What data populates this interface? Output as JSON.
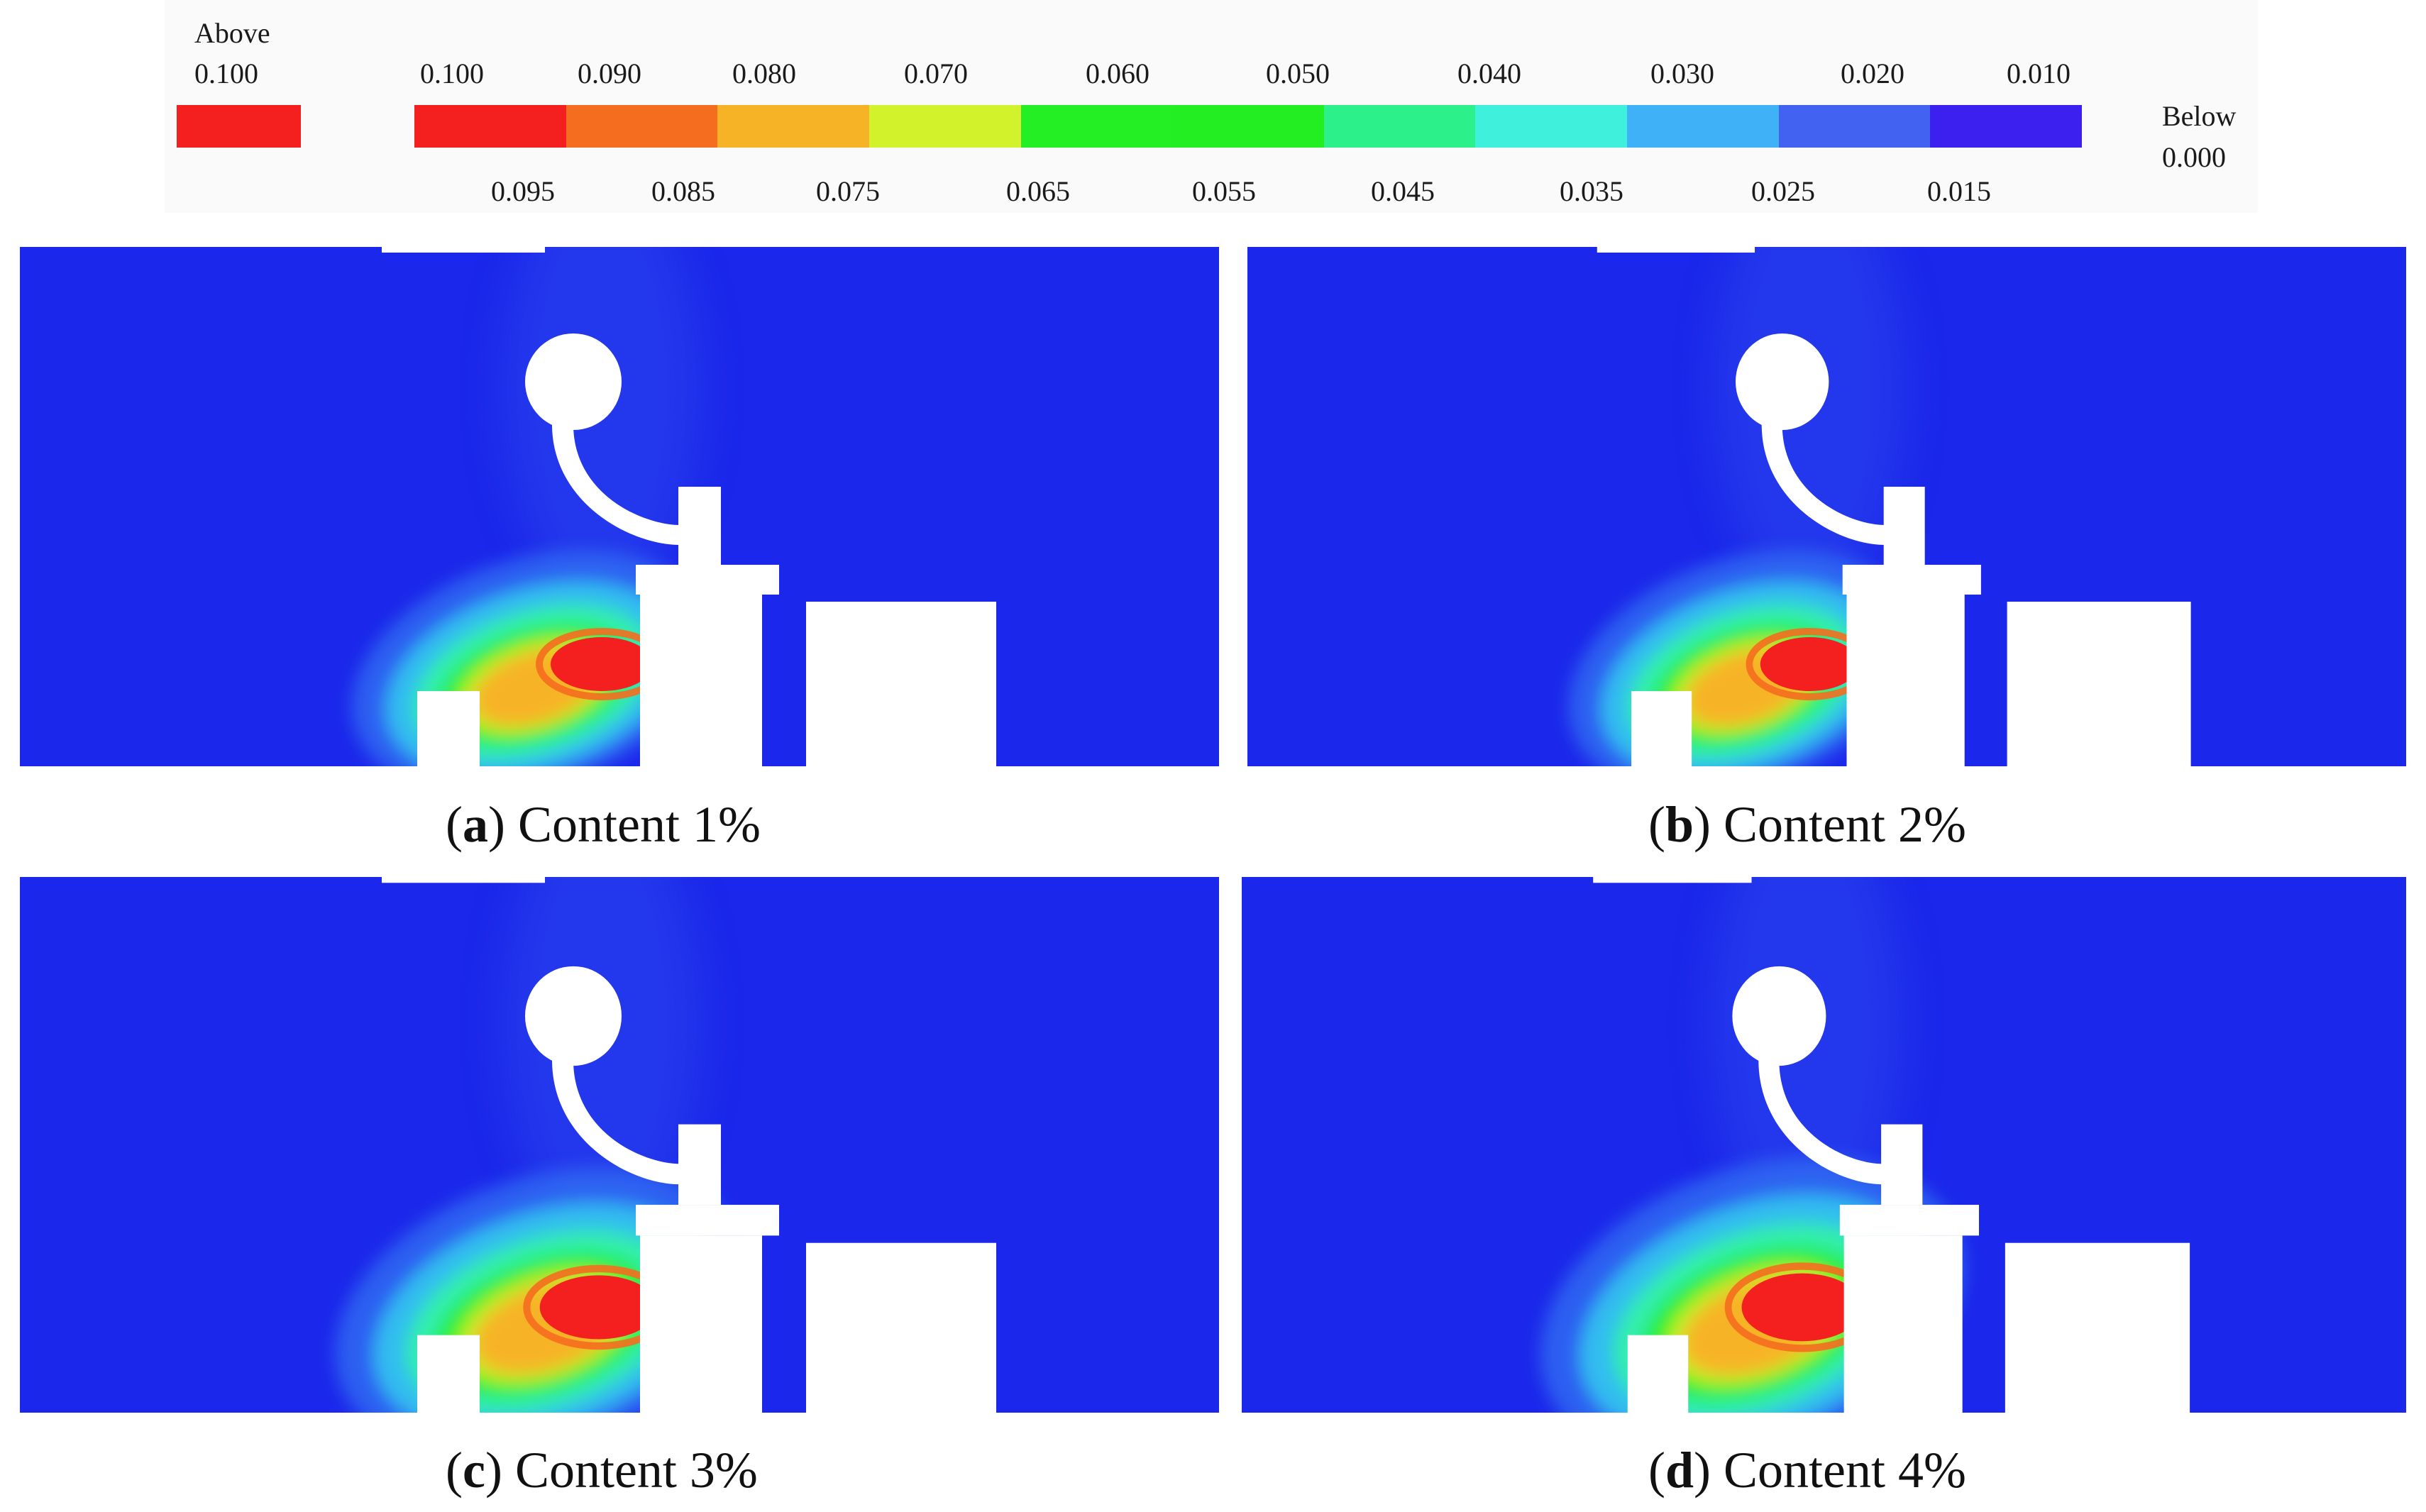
{
  "legend": {
    "above_label": "Above",
    "above_value": "0.100",
    "above_color": "#f41f1f",
    "below_label": "Below",
    "below_value": "0.000",
    "top_labels": [
      "0.100",
      "0.090",
      "0.080",
      "0.070",
      "0.060",
      "0.050",
      "0.040",
      "0.030",
      "0.020",
      "0.010"
    ],
    "bottom_labels": [
      "0.095",
      "0.085",
      "0.075",
      "0.065",
      "0.055",
      "0.045",
      "0.035",
      "0.025",
      "0.015"
    ],
    "colors": [
      "#f42020",
      "#f56d1f",
      "#f7b326",
      "#d2f22b",
      "#24ee24",
      "#22ee22",
      "#2cf089",
      "#3ff0dd",
      "#3fb1f6",
      "#4262f2",
      "#3b20f0"
    ]
  },
  "panels": [
    {
      "letter": "a",
      "text": "Content 1%",
      "plume_scale": 1.0
    },
    {
      "letter": "b",
      "text": "Content 2%",
      "plume_scale": 1.0
    },
    {
      "letter": "c",
      "text": "Content 3%",
      "plume_scale": 1.15
    },
    {
      "letter": "d",
      "text": "Content 4%",
      "plume_scale": 1.22
    }
  ]
}
